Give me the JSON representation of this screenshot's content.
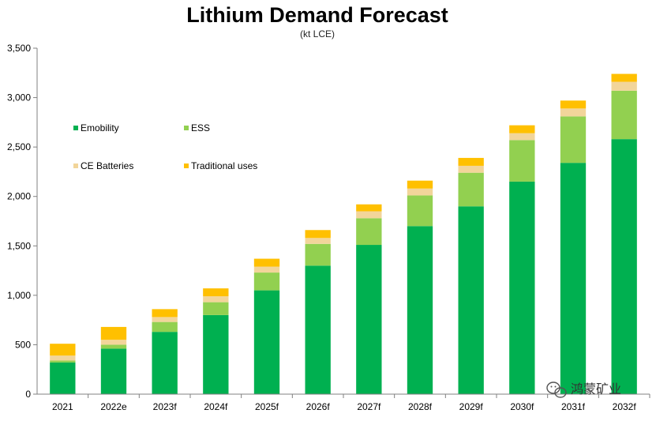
{
  "chart_data": {
    "type": "bar",
    "stacked": true,
    "title": "Lithium Demand Forecast",
    "subtitle": "(kt LCE)",
    "xlabel": "",
    "ylabel": "",
    "ylim": [
      0,
      3500
    ],
    "yticks": [
      0,
      500,
      1000,
      1500,
      2000,
      2500,
      3000,
      3500
    ],
    "ytick_labels": [
      "0",
      "500",
      "1,000",
      "1,500",
      "2,000",
      "2,500",
      "3,000",
      "3,500"
    ],
    "grid": false,
    "legend_position": "top-left",
    "categories": [
      "2021",
      "2022e",
      "2023f",
      "2024f",
      "2025f",
      "2026f",
      "2027f",
      "2028f",
      "2029f",
      "2030f",
      "2031f",
      "2032f"
    ],
    "series": [
      {
        "name": "Emobility",
        "color": "#00b050",
        "values": [
          320,
          460,
          630,
          800,
          1050,
          1300,
          1510,
          1700,
          1900,
          2150,
          2340,
          2580
        ]
      },
      {
        "name": "ESS",
        "color": "#92d050",
        "values": [
          20,
          40,
          100,
          130,
          180,
          220,
          270,
          310,
          340,
          420,
          470,
          490
        ]
      },
      {
        "name": "CE Batteries",
        "color": "#f2d59a",
        "values": [
          50,
          50,
          50,
          60,
          60,
          60,
          70,
          70,
          70,
          70,
          80,
          90
        ]
      },
      {
        "name": "Traditional uses",
        "color": "#ffc000",
        "values": [
          120,
          130,
          80,
          80,
          80,
          80,
          70,
          80,
          80,
          80,
          80,
          80
        ]
      }
    ]
  },
  "watermark": {
    "text": "鸿蒙矿业",
    "icon": "wechat-icon"
  },
  "colors": {
    "axis": "#808080"
  }
}
